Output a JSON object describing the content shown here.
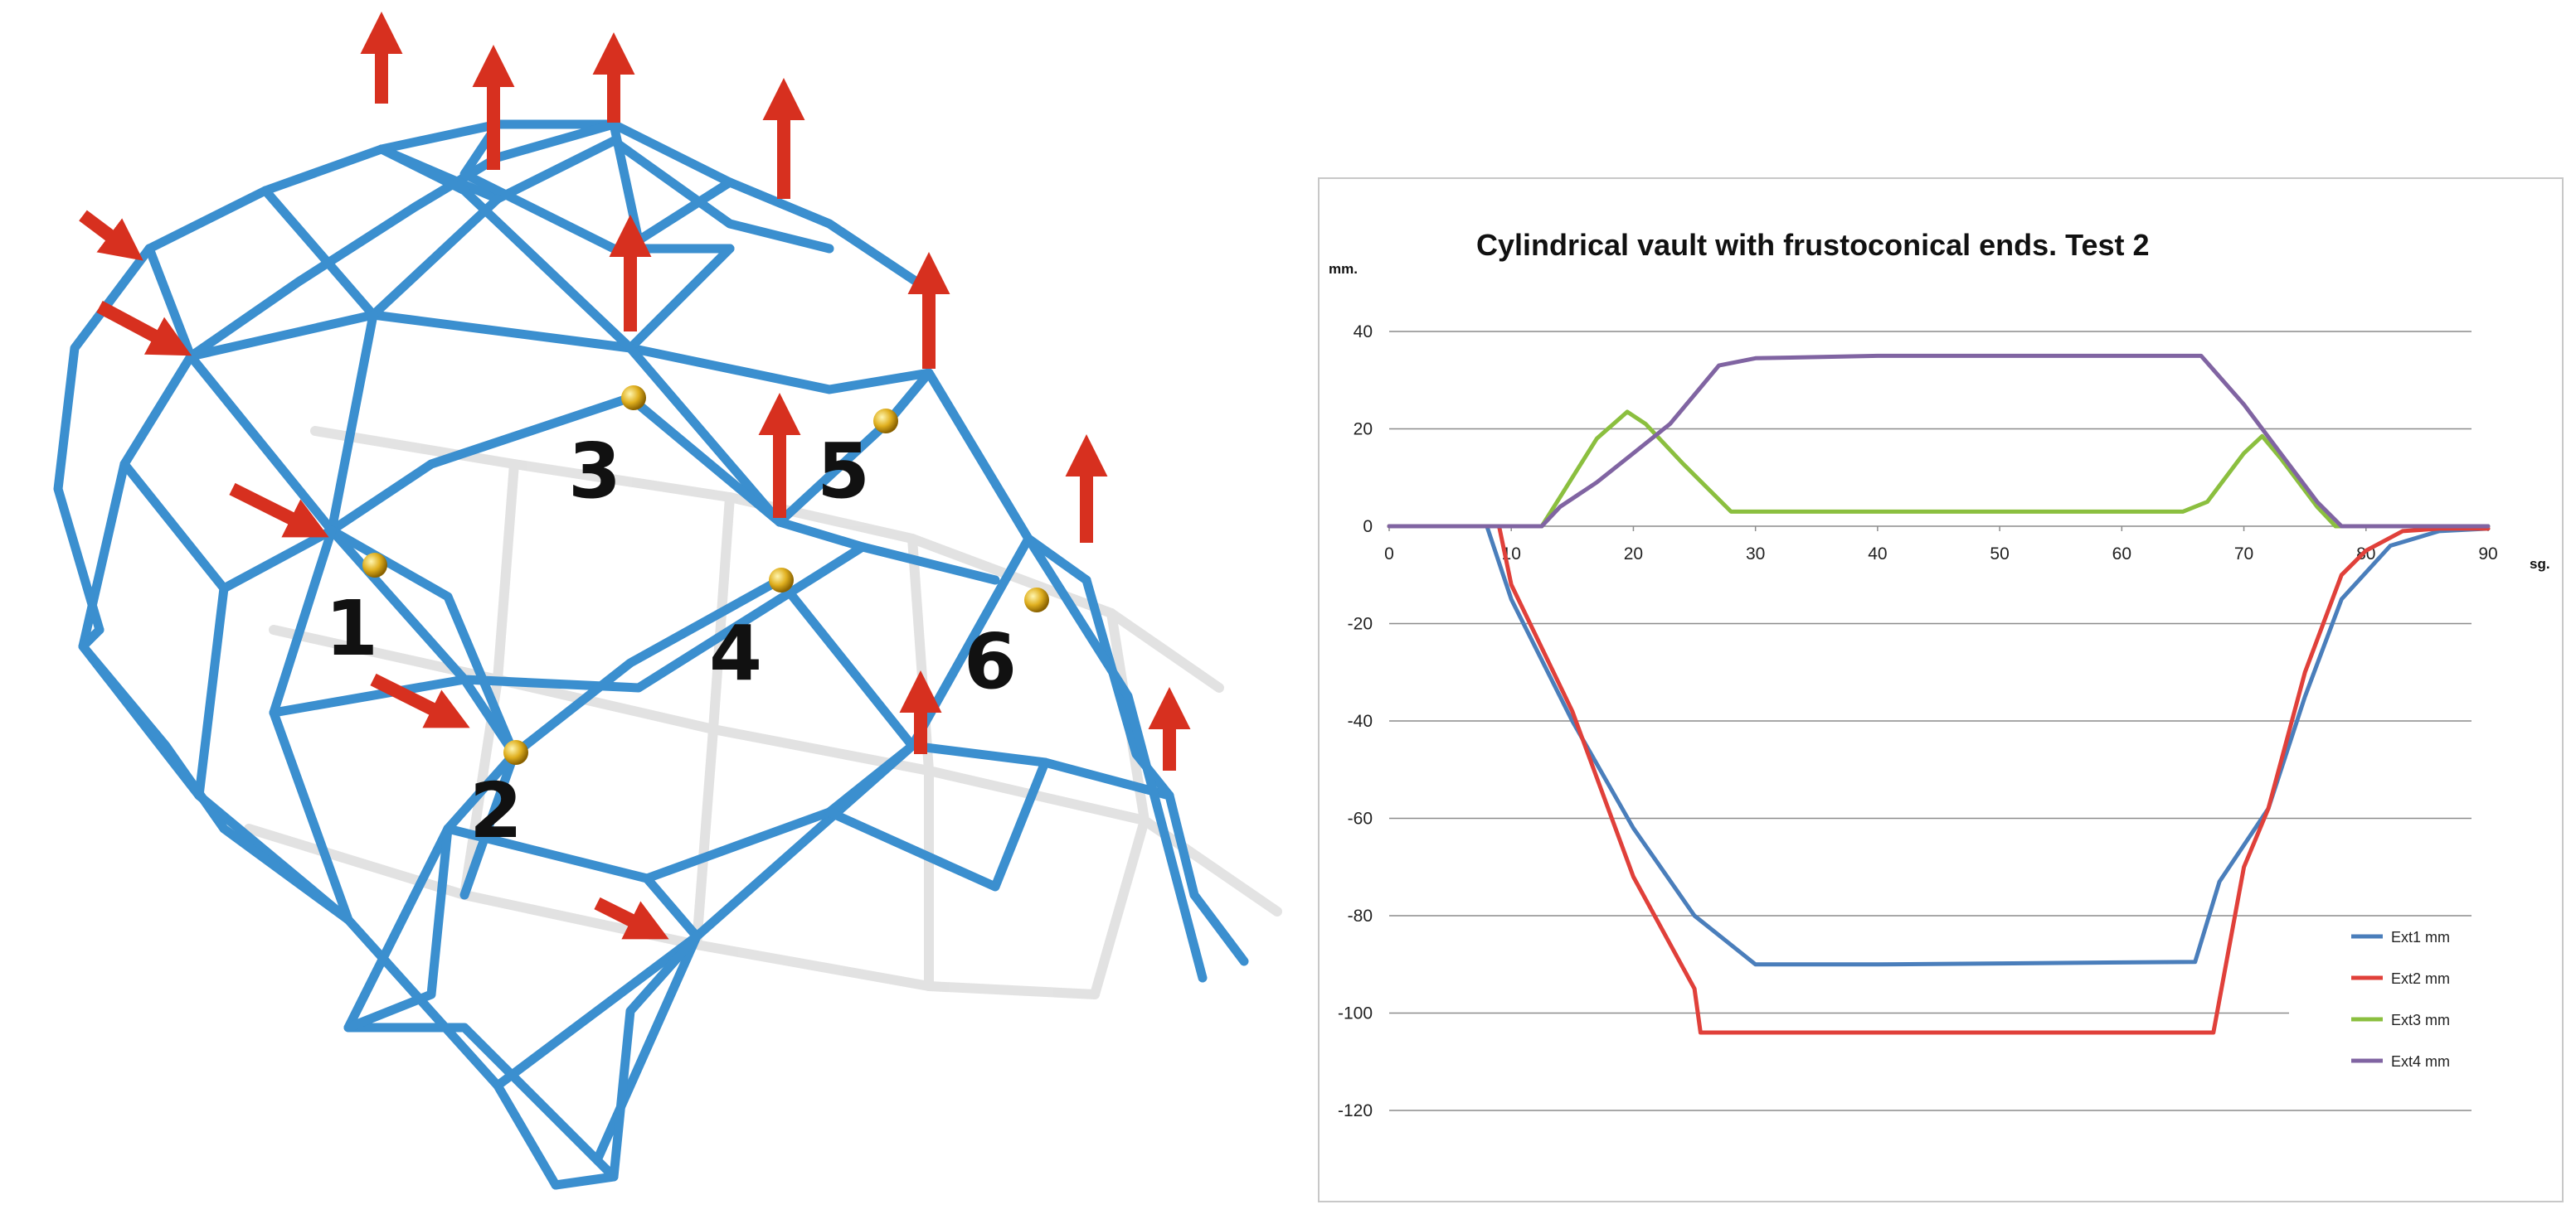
{
  "structure_figure": {
    "node_labels": [
      "1",
      "2",
      "3",
      "4",
      "5",
      "6"
    ],
    "colors": {
      "bars": "#3b8fcf",
      "arrows": "#d7301f",
      "nodes": "#e0b020"
    }
  },
  "chart_data": {
    "type": "line",
    "title": "Cylindrical vault with frustoconical ends. Test 2",
    "ylabel": "mm.",
    "xlabel": "sg.",
    "xlim": [
      0,
      90
    ],
    "ylim": [
      -120,
      40
    ],
    "x_ticks": [
      0,
      10,
      20,
      30,
      40,
      50,
      60,
      70,
      80,
      90
    ],
    "y_ticks": [
      40,
      20,
      0,
      -20,
      -40,
      -60,
      -80,
      -100,
      -120
    ],
    "grid": "horizontal",
    "legend_position": "bottom-right",
    "series": [
      {
        "name": "Ext1 mm",
        "color": "#4a7ebb",
        "points": [
          [
            0,
            0
          ],
          [
            8,
            0
          ],
          [
            10,
            -15
          ],
          [
            15,
            -40
          ],
          [
            20,
            -62
          ],
          [
            25,
            -80
          ],
          [
            30,
            -90
          ],
          [
            40,
            -90
          ],
          [
            50,
            -89.8
          ],
          [
            60,
            -89.6
          ],
          [
            66,
            -89.5
          ],
          [
            68,
            -73
          ],
          [
            72,
            -58
          ],
          [
            75,
            -35
          ],
          [
            78,
            -15
          ],
          [
            82,
            -4
          ],
          [
            86,
            -1
          ],
          [
            90,
            -0.5
          ]
        ]
      },
      {
        "name": "Ext2 mm",
        "color": "#e0403a",
        "points": [
          [
            0,
            0
          ],
          [
            9,
            0
          ],
          [
            10,
            -12
          ],
          [
            15,
            -38
          ],
          [
            20,
            -72
          ],
          [
            25,
            -95
          ],
          [
            25.5,
            -104
          ],
          [
            50,
            -104
          ],
          [
            67.5,
            -104
          ],
          [
            70,
            -70
          ],
          [
            72,
            -58
          ],
          [
            75,
            -30
          ],
          [
            78,
            -10
          ],
          [
            80,
            -5
          ],
          [
            83,
            -1
          ],
          [
            86,
            -0.5
          ],
          [
            90,
            -0.5
          ]
        ]
      },
      {
        "name": "Ext3 mm",
        "color": "#8bbf3f",
        "points": [
          [
            0,
            0
          ],
          [
            12.5,
            0
          ],
          [
            14,
            6
          ],
          [
            17,
            18
          ],
          [
            19.5,
            23.5
          ],
          [
            21,
            21
          ],
          [
            24,
            13
          ],
          [
            28,
            3
          ],
          [
            30,
            3
          ],
          [
            65,
            3
          ],
          [
            67,
            5
          ],
          [
            70,
            15
          ],
          [
            71.5,
            18.5
          ],
          [
            73,
            14
          ],
          [
            76,
            4
          ],
          [
            77.5,
            0
          ],
          [
            90,
            0
          ]
        ]
      },
      {
        "name": "Ext4 mm",
        "color": "#8064a2",
        "points": [
          [
            0,
            0
          ],
          [
            12.5,
            0
          ],
          [
            14,
            4
          ],
          [
            17,
            9
          ],
          [
            20,
            15
          ],
          [
            23,
            21
          ],
          [
            25,
            27
          ],
          [
            27,
            33
          ],
          [
            30,
            34.5
          ],
          [
            40,
            35
          ],
          [
            50,
            35
          ],
          [
            60,
            35
          ],
          [
            66.5,
            35
          ],
          [
            70,
            25
          ],
          [
            73,
            15
          ],
          [
            76,
            5
          ],
          [
            78,
            0
          ],
          [
            90,
            0
          ]
        ]
      }
    ]
  }
}
